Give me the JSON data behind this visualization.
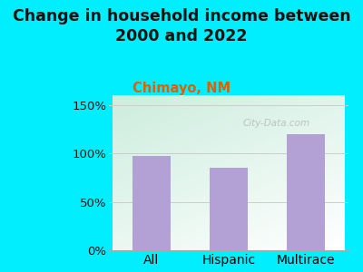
{
  "title": "Change in household income between\n2000 and 2022",
  "subtitle": "Chimayo, NM",
  "categories": [
    "All",
    "Hispanic",
    "Multirace"
  ],
  "values": [
    97,
    85,
    120
  ],
  "bar_color": "#b3a0d4",
  "title_fontsize": 12.5,
  "subtitle_fontsize": 10.5,
  "subtitle_color": "#e06000",
  "title_color": "#111111",
  "background_color": "#00eeff",
  "plot_bg_color_topleft": "#cceedd",
  "plot_bg_color_white": "#ffffff",
  "yticks": [
    0,
    50,
    100,
    150
  ],
  "ylim": [
    0,
    160
  ],
  "watermark": "City-Data.com",
  "tick_label_fontsize": 9.5,
  "xlabel_fontsize": 10,
  "bar_width": 0.5
}
